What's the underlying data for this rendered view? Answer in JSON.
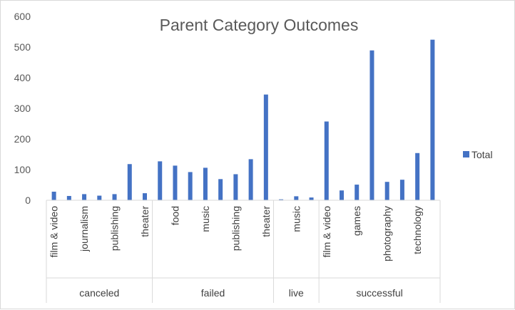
{
  "chart_data": {
    "type": "bar",
    "title": "Parent Category Outcomes",
    "xlabel": "",
    "ylabel": "",
    "ylim": [
      0,
      600
    ],
    "yticks": [
      0,
      100,
      200,
      300,
      400,
      500,
      600
    ],
    "grid": false,
    "legend_position": "right",
    "bar_color": "#4472c4",
    "series": [
      {
        "name": "Total"
      }
    ],
    "groups": [
      {
        "label": "canceled",
        "bars": [
          {
            "category": "film & video",
            "value": 28
          },
          {
            "category": "",
            "value": 14
          },
          {
            "category": "journalism",
            "value": 20
          },
          {
            "category": "",
            "value": 15
          },
          {
            "category": "publishing",
            "value": 20
          },
          {
            "category": "",
            "value": 118
          },
          {
            "category": "theater",
            "value": 23
          }
        ]
      },
      {
        "label": "failed",
        "bars": [
          {
            "category": "",
            "value": 127
          },
          {
            "category": "food",
            "value": 113
          },
          {
            "category": "",
            "value": 92
          },
          {
            "category": "music",
            "value": 106
          },
          {
            "category": "",
            "value": 69
          },
          {
            "category": "publishing",
            "value": 85
          },
          {
            "category": "",
            "value": 134
          },
          {
            "category": "theater",
            "value": 345
          }
        ]
      },
      {
        "label": "live",
        "bars": [
          {
            "category": "",
            "value": 3
          },
          {
            "category": "music",
            "value": 13
          },
          {
            "category": "",
            "value": 9
          }
        ]
      },
      {
        "label": "successful",
        "bars": [
          {
            "category": "film & video",
            "value": 257
          },
          {
            "category": "",
            "value": 32
          },
          {
            "category": "games",
            "value": 51
          },
          {
            "category": "",
            "value": 489
          },
          {
            "category": "photography",
            "value": 60
          },
          {
            "category": "",
            "value": 67
          },
          {
            "category": "technology",
            "value": 154
          },
          {
            "category": "",
            "value": 524
          }
        ]
      }
    ]
  }
}
